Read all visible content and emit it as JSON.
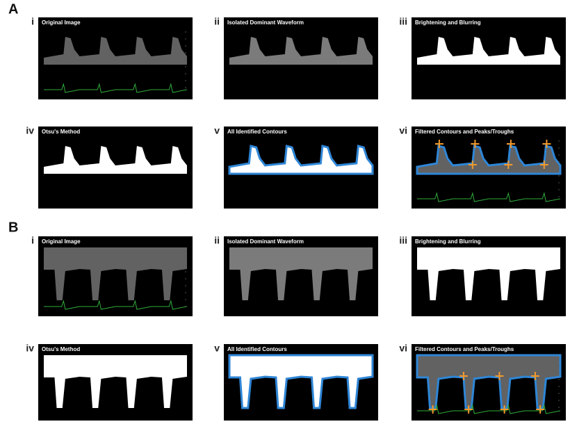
{
  "sections": [
    {
      "label": "A",
      "panels": [
        {
          "numeral": "i",
          "caption": "Original Image"
        },
        {
          "numeral": "ii",
          "caption": "Isolated Dominant Waveform"
        },
        {
          "numeral": "iii",
          "caption": "Brightening and Blurring"
        },
        {
          "numeral": "iv",
          "caption": "Otsu's Method"
        },
        {
          "numeral": "v",
          "caption": "All Identified Contours"
        },
        {
          "numeral": "vi",
          "caption": "Filtered Contours and Peaks/Troughs"
        }
      ]
    },
    {
      "label": "B",
      "panels": [
        {
          "numeral": "i",
          "caption": "Original Image"
        },
        {
          "numeral": "ii",
          "caption": "Isolated Dominant Waveform"
        },
        {
          "numeral": "iii",
          "caption": "Brightening and Blurring"
        },
        {
          "numeral": "iv",
          "caption": "Otsu's Method"
        },
        {
          "numeral": "v",
          "caption": "All Identified Contours"
        },
        {
          "numeral": "vi",
          "caption": "Filtered Contours and Peaks/Troughs"
        }
      ]
    }
  ]
}
